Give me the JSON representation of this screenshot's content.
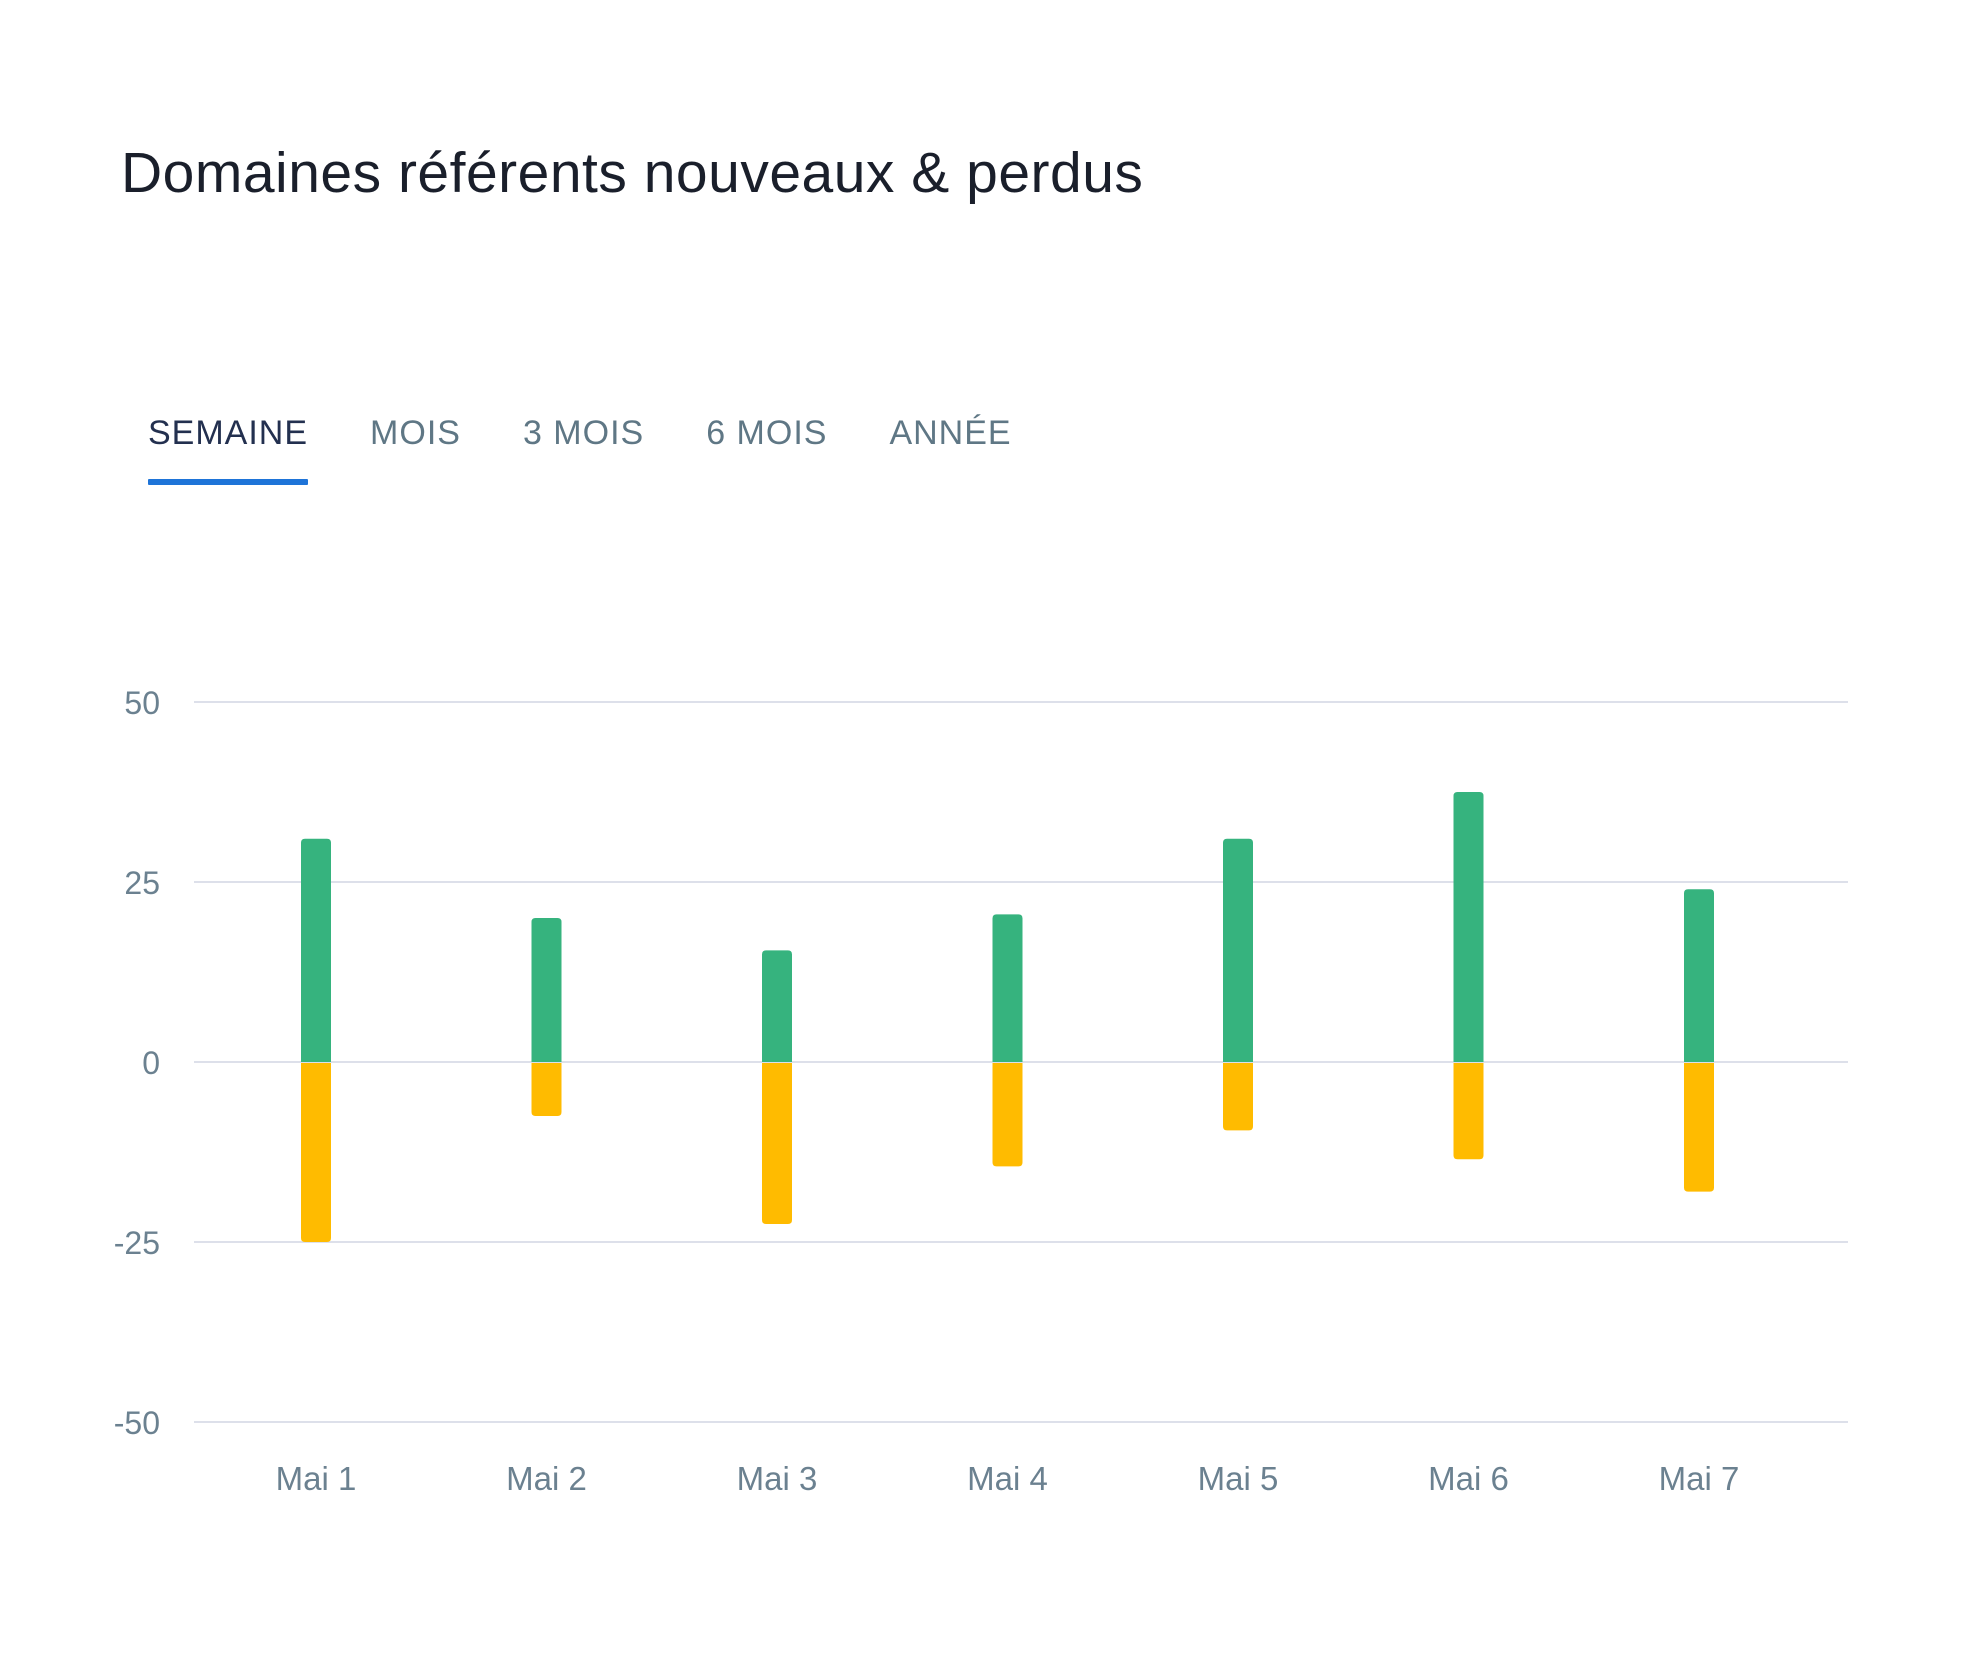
{
  "title": "Domaines référents nouveaux & perdus",
  "tabs": [
    {
      "label": "SEMAINE",
      "active": true
    },
    {
      "label": "MOIS",
      "active": false
    },
    {
      "label": "3 MOIS",
      "active": false
    },
    {
      "label": "6 MOIS",
      "active": false
    },
    {
      "label": "ANNÉE",
      "active": false
    }
  ],
  "colors": {
    "gained": "#36b37e",
    "lost": "#ffbb00",
    "grid": "#dde0ea",
    "tick": "#6b8190",
    "accent": "#1e74d8"
  },
  "chart_data": {
    "type": "bar",
    "categories": [
      "Mai 1",
      "Mai 2",
      "Mai 3",
      "Mai 4",
      "Mai 5",
      "Mai 6",
      "Mai 7"
    ],
    "series": [
      {
        "values": [
          31,
          20,
          15.5,
          20.5,
          31,
          37.5,
          24
        ]
      },
      {
        "values": [
          -25,
          -7.5,
          -22.5,
          -14.5,
          -9.5,
          -13.5,
          -18
        ]
      }
    ],
    "yticks": [
      50,
      25,
      0,
      -25,
      -50
    ],
    "ytick_labels": [
      "50",
      "25",
      "0",
      "-25",
      "-50"
    ],
    "ylim": [
      -50,
      50
    ],
    "grid": true,
    "stacked": true
  }
}
